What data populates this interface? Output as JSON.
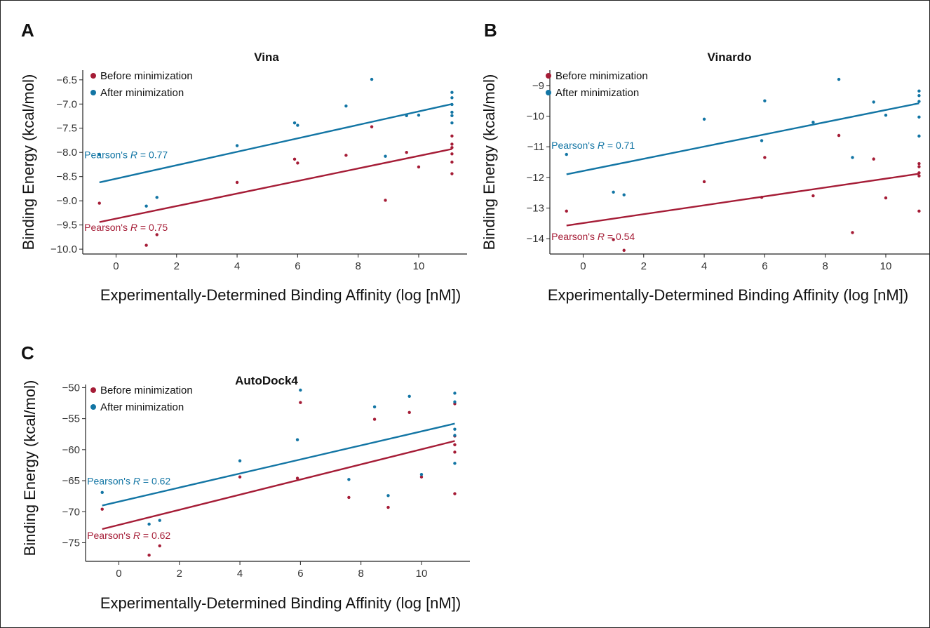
{
  "colors": {
    "before": "#a51c36",
    "after": "#1275a4",
    "axis": "#222222"
  },
  "chart_data": [
    {
      "panel": "A",
      "type": "scatter",
      "title": "Vina",
      "xlabel": "Experimentally-Determined Binding Affinity (log [nM])",
      "ylabel": "Binding Energy (kcal/mol)",
      "xlim": [
        -1.1,
        11.6
      ],
      "ylim": [
        -10.1,
        -6.3
      ],
      "xticks": [
        "0",
        "2",
        "4",
        "6",
        "8",
        "10"
      ],
      "xtick_values": [
        0,
        2,
        4,
        6,
        8,
        10
      ],
      "yticks": [
        "−6.5",
        "−7.0",
        "−7.5",
        "−8.0",
        "−8.5",
        "−9.0",
        "−9.5",
        "−10.0"
      ],
      "ytick_values": [
        -6.5,
        -7.0,
        -7.5,
        -8.0,
        -8.5,
        -9.0,
        -9.5,
        -10.0
      ],
      "legend": {
        "placement": "top-left",
        "before_label": "Before minimization",
        "after_label": "After minimization"
      },
      "annotations": {
        "after": {
          "prefix": "Pearson's ",
          "r": "R",
          "suffix": " = 0.77",
          "at": [
            -1.05,
            -8.12
          ]
        },
        "before": {
          "prefix": "Pearson's ",
          "r": "R",
          "suffix": " = 0.75",
          "at": [
            -1.05,
            -9.62
          ]
        }
      },
      "series": [
        {
          "key": "before",
          "points": [
            [
              -0.55,
              -9.05
            ],
            [
              1.0,
              -9.92
            ],
            [
              1.35,
              -9.7
            ],
            [
              4.0,
              -8.62
            ],
            [
              5.9,
              -8.14
            ],
            [
              6.0,
              -8.22
            ],
            [
              7.6,
              -8.06
            ],
            [
              8.45,
              -7.47
            ],
            [
              8.9,
              -8.99
            ],
            [
              9.6,
              -8.0
            ],
            [
              10.0,
              -8.3
            ],
            [
              11.1,
              -7.66
            ],
            [
              11.1,
              -7.83
            ],
            [
              11.1,
              -7.9
            ],
            [
              11.1,
              -8.03
            ],
            [
              11.1,
              -8.2
            ],
            [
              11.1,
              -8.44
            ]
          ],
          "fit": {
            "x": [
              -0.55,
              11.1
            ],
            "y": [
              -9.44,
              -7.93
            ]
          }
        },
        {
          "key": "after",
          "points": [
            [
              -0.55,
              -8.04
            ],
            [
              1.0,
              -9.11
            ],
            [
              1.35,
              -8.93
            ],
            [
              4.0,
              -7.86
            ],
            [
              5.9,
              -7.39
            ],
            [
              6.0,
              -7.44
            ],
            [
              7.6,
              -7.04
            ],
            [
              8.45,
              -6.49
            ],
            [
              8.9,
              -8.08
            ],
            [
              9.6,
              -7.24
            ],
            [
              10.0,
              -7.23
            ],
            [
              11.1,
              -6.76
            ],
            [
              11.1,
              -6.87
            ],
            [
              11.1,
              -7.01
            ],
            [
              11.1,
              -7.17
            ],
            [
              11.1,
              -7.24
            ],
            [
              11.1,
              -7.39
            ]
          ],
          "fit": {
            "x": [
              -0.55,
              11.1
            ],
            "y": [
              -8.62,
              -7.0
            ]
          }
        }
      ]
    },
    {
      "panel": "B",
      "type": "scatter",
      "title": "Vinardo",
      "xlabel": "Experimentally-Determined Binding Affinity (log [nM])",
      "ylabel": "Binding Energy (kcal/mol)",
      "xlim": [
        -1.1,
        11.6
      ],
      "ylim": [
        -14.5,
        -8.5
      ],
      "xticks": [
        "0",
        "2",
        "4",
        "6",
        "8",
        "10"
      ],
      "xtick_values": [
        0,
        2,
        4,
        6,
        8,
        10
      ],
      "yticks": [
        "−9",
        "−10",
        "−11",
        "−12",
        "−13",
        "−14"
      ],
      "ytick_values": [
        -9,
        -10,
        -11,
        -12,
        -13,
        -14
      ],
      "legend": {
        "placement": "top-left",
        "before_label": "Before minimization",
        "after_label": "After minimization"
      },
      "annotations": {
        "after": {
          "prefix": "Pearson's ",
          "r": "R",
          "suffix": " = 0.71",
          "at": [
            -1.05,
            -11.07
          ]
        },
        "before": {
          "prefix": "Pearson's ",
          "r": "R",
          "suffix": " = 0.54",
          "at": [
            -1.05,
            -14.04
          ]
        }
      },
      "series": [
        {
          "key": "before",
          "points": [
            [
              -0.55,
              -13.1
            ],
            [
              1.0,
              -14.03
            ],
            [
              1.35,
              -14.38
            ],
            [
              4.0,
              -12.14
            ],
            [
              5.9,
              -12.65
            ],
            [
              6.0,
              -11.35
            ],
            [
              7.6,
              -12.6
            ],
            [
              8.45,
              -10.63
            ],
            [
              8.9,
              -13.8
            ],
            [
              9.6,
              -11.4
            ],
            [
              10.0,
              -12.67
            ],
            [
              11.1,
              -11.55
            ],
            [
              11.1,
              -11.65
            ],
            [
              11.1,
              -11.85
            ],
            [
              11.1,
              -11.95
            ],
            [
              11.1,
              -13.1
            ]
          ],
          "fit": {
            "x": [
              -0.55,
              11.1
            ],
            "y": [
              -13.57,
              -11.88
            ]
          }
        },
        {
          "key": "after",
          "points": [
            [
              -0.55,
              -11.25
            ],
            [
              1.0,
              -12.48
            ],
            [
              1.35,
              -12.57
            ],
            [
              4.0,
              -10.1
            ],
            [
              5.9,
              -10.8
            ],
            [
              6.0,
              -9.5
            ],
            [
              7.6,
              -10.2
            ],
            [
              8.45,
              -8.8
            ],
            [
              8.9,
              -11.35
            ],
            [
              9.6,
              -9.54
            ],
            [
              10.0,
              -9.97
            ],
            [
              11.1,
              -9.18
            ],
            [
              11.1,
              -9.33
            ],
            [
              11.1,
              -9.52
            ],
            [
              11.1,
              -10.03
            ],
            [
              11.1,
              -10.65
            ]
          ],
          "fit": {
            "x": [
              -0.55,
              11.1
            ],
            "y": [
              -11.9,
              -9.58
            ]
          }
        }
      ]
    },
    {
      "panel": "C",
      "type": "scatter",
      "title": "AutoDock4",
      "xlabel": "Experimentally-Determined Binding Affinity (log [nM])",
      "ylabel": "Binding Energy (kcal/mol)",
      "xlim": [
        -1.1,
        11.6
      ],
      "ylim": [
        -78,
        -49.5
      ],
      "xticks": [
        "0",
        "2",
        "4",
        "6",
        "8",
        "10"
      ],
      "xtick_values": [
        0,
        2,
        4,
        6,
        8,
        10
      ],
      "yticks": [
        "−50",
        "−55",
        "−60",
        "−65",
        "−70",
        "−75"
      ],
      "ytick_values": [
        -50,
        -55,
        -60,
        -65,
        -70,
        -75
      ],
      "legend": {
        "placement": "top-left",
        "before_label": "Before minimization",
        "after_label": "After minimization"
      },
      "annotations": {
        "after": {
          "prefix": "Pearson's ",
          "r": "R",
          "suffix": " = 0.62",
          "at": [
            -1.05,
            -65.6
          ]
        },
        "before": {
          "prefix": "Pearson's ",
          "r": "R",
          "suffix": " = 0.62",
          "at": [
            -1.05,
            -74.4
          ]
        }
      },
      "series": [
        {
          "key": "before",
          "points": [
            [
              -0.55,
              -69.6
            ],
            [
              1.0,
              -77.0
            ],
            [
              1.35,
              -75.5
            ],
            [
              4.0,
              -64.4
            ],
            [
              5.9,
              -64.6
            ],
            [
              6.0,
              -52.4
            ],
            [
              7.6,
              -67.7
            ],
            [
              8.45,
              -55.1
            ],
            [
              8.9,
              -69.3
            ],
            [
              9.6,
              -54.0
            ],
            [
              10.0,
              -64.4
            ],
            [
              11.1,
              -52.6
            ],
            [
              11.1,
              -57.8
            ],
            [
              11.1,
              -59.2
            ],
            [
              11.1,
              -60.4
            ],
            [
              11.1,
              -67.1
            ]
          ],
          "fit": {
            "x": [
              -0.55,
              11.1
            ],
            "y": [
              -72.8,
              -58.6
            ]
          }
        },
        {
          "key": "after",
          "points": [
            [
              -0.55,
              -66.9
            ],
            [
              1.0,
              -72.0
            ],
            [
              1.35,
              -71.4
            ],
            [
              4.0,
              -61.8
            ],
            [
              5.9,
              -58.4
            ],
            [
              6.0,
              -50.4
            ],
            [
              7.6,
              -64.8
            ],
            [
              8.45,
              -53.1
            ],
            [
              8.9,
              -67.4
            ],
            [
              9.6,
              -51.4
            ],
            [
              10.0,
              -64.0
            ],
            [
              11.1,
              -50.9
            ],
            [
              11.1,
              -52.3
            ],
            [
              11.1,
              -56.7
            ],
            [
              11.1,
              -57.7
            ],
            [
              11.1,
              -62.2
            ]
          ],
          "fit": {
            "x": [
              -0.55,
              11.1
            ],
            "y": [
              -69.0,
              -55.8
            ]
          }
        }
      ]
    }
  ]
}
